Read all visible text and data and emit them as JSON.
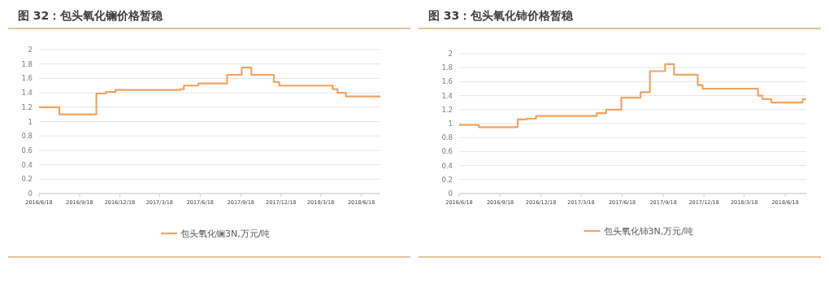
{
  "chart_data": [
    {
      "type": "step",
      "title": "图 32：包头氧化镧价格暂稳",
      "legend": "bottom",
      "grid": "y",
      "marker": "none",
      "xlim": [
        "2016-06-18",
        "2018-07-31"
      ],
      "ylim": [
        0,
        2
      ],
      "yticks": [
        0,
        0.2,
        0.4,
        0.6,
        0.8,
        1,
        1.2,
        1.4,
        1.6,
        1.8,
        2
      ],
      "xticks": [
        {
          "value": "2016-06-18",
          "label": "2016/6/18"
        },
        {
          "value": "2016-09-18",
          "label": "2016/9/18"
        },
        {
          "value": "2016-12-18",
          "label": "2016/12/18"
        },
        {
          "value": "2017-03-18",
          "label": "2017/3/18"
        },
        {
          "value": "2017-06-18",
          "label": "2017/6/18"
        },
        {
          "value": "2017-09-18",
          "label": "2017/9/18"
        },
        {
          "value": "2017-12-18",
          "label": "2017/12/18"
        },
        {
          "value": "2018-03-18",
          "label": "2018/3/18"
        },
        {
          "value": "2018-06-18",
          "label": "2018/6/18"
        }
      ],
      "series": [
        {
          "name": "包头氧化镧3N,万元/吨",
          "color": "#f4a460",
          "x": [
            "2016-06-18",
            "2016-08-03",
            "2016-10-26",
            "2016-11-16",
            "2016-12-08",
            "2017-05-04",
            "2017-05-12",
            "2017-06-14",
            "2017-08-18",
            "2017-09-20",
            "2017-10-12",
            "2017-12-02",
            "2017-12-14",
            "2018-04-14",
            "2018-04-25",
            "2018-05-14",
            "2018-07-31"
          ],
          "values": [
            1.2,
            1.1,
            1.39,
            1.41,
            1.44,
            1.45,
            1.5,
            1.53,
            1.65,
            1.75,
            1.65,
            1.55,
            1.5,
            1.45,
            1.4,
            1.35,
            1.35
          ]
        }
      ]
    },
    {
      "type": "step",
      "title": "图 33：包头氧化铈价格暂稳",
      "legend": "bottom",
      "grid": "y",
      "marker": "none",
      "xlim": [
        "2016-06-18",
        "2018-08-04"
      ],
      "ylim": [
        0,
        2
      ],
      "yticks": [
        0,
        0.2,
        0.4,
        0.6,
        0.8,
        1,
        1.2,
        1.4,
        1.6,
        1.8,
        2
      ],
      "xticks": [
        {
          "value": "2016-06-18",
          "label": "2016/6/18"
        },
        {
          "value": "2016-09-18",
          "label": "2016/9/18"
        },
        {
          "value": "2016-12-18",
          "label": "2016/12/18"
        },
        {
          "value": "2017-03-18",
          "label": "2017/3/18"
        },
        {
          "value": "2017-06-18",
          "label": "2017/6/18"
        },
        {
          "value": "2017-09-18",
          "label": "2017/9/18"
        },
        {
          "value": "2017-12-18",
          "label": "2017/12/18"
        },
        {
          "value": "2018-03-18",
          "label": "2018/3/18"
        },
        {
          "value": "2018-06-18",
          "label": "2018/6/18"
        }
      ],
      "series": [
        {
          "name": "包头氧化铈3N,万元/吨",
          "color": "#f4a460",
          "x": [
            "2016-06-18",
            "2016-08-01",
            "2016-10-27",
            "2016-11-16",
            "2016-12-07",
            "2017-04-22",
            "2017-05-13",
            "2017-06-16",
            "2017-07-29",
            "2017-08-19",
            "2017-09-22",
            "2017-10-12",
            "2017-12-04",
            "2017-12-15",
            "2018-04-18",
            "2018-04-28",
            "2018-05-18",
            "2018-07-27",
            "2018-08-04"
          ],
          "values": [
            0.98,
            0.95,
            1.06,
            1.07,
            1.11,
            1.15,
            1.2,
            1.37,
            1.45,
            1.75,
            1.85,
            1.7,
            1.55,
            1.5,
            1.4,
            1.35,
            1.3,
            1.35,
            1.35
          ]
        }
      ]
    }
  ]
}
